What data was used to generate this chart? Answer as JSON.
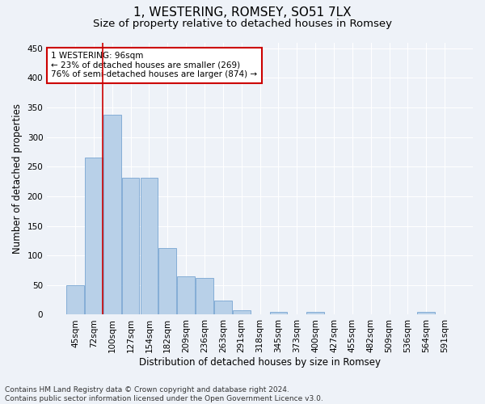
{
  "title": "1, WESTERING, ROMSEY, SO51 7LX",
  "subtitle": "Size of property relative to detached houses in Romsey",
  "xlabel": "Distribution of detached houses by size in Romsey",
  "ylabel": "Number of detached properties",
  "categories": [
    "45sqm",
    "72sqm",
    "100sqm",
    "127sqm",
    "154sqm",
    "182sqm",
    "209sqm",
    "236sqm",
    "263sqm",
    "291sqm",
    "318sqm",
    "345sqm",
    "373sqm",
    "400sqm",
    "427sqm",
    "455sqm",
    "482sqm",
    "509sqm",
    "536sqm",
    "564sqm",
    "591sqm"
  ],
  "values": [
    50,
    265,
    338,
    232,
    232,
    112,
    65,
    62,
    24,
    7,
    0,
    5,
    0,
    5,
    0,
    0,
    0,
    0,
    0,
    5,
    0
  ],
  "bar_color": "#b8d0e8",
  "bar_edge_color": "#6699cc",
  "vline_color": "#cc0000",
  "vline_x_index": 1.5,
  "annotation_text": "1 WESTERING: 96sqm\n← 23% of detached houses are smaller (269)\n76% of semi-detached houses are larger (874) →",
  "annotation_box_color": "#ffffff",
  "annotation_box_edge_color": "#cc0000",
  "ylim_max": 460,
  "yticks": [
    0,
    50,
    100,
    150,
    200,
    250,
    300,
    350,
    400,
    450
  ],
  "footer_line1": "Contains HM Land Registry data © Crown copyright and database right 2024.",
  "footer_line2": "Contains public sector information licensed under the Open Government Licence v3.0.",
  "bg_color": "#eef2f8",
  "grid_color": "#ffffff",
  "title_fontsize": 11,
  "subtitle_fontsize": 9.5,
  "axis_label_fontsize": 8.5,
  "tick_fontsize": 7.5,
  "annotation_fontsize": 7.5,
  "footer_fontsize": 6.5
}
